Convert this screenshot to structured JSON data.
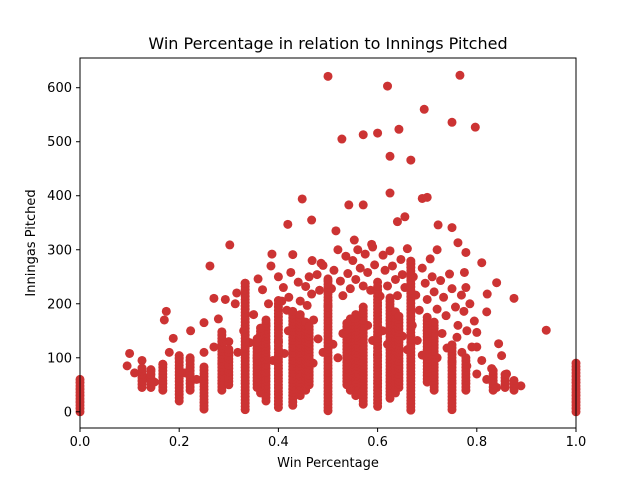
{
  "chart_data": {
    "type": "scatter",
    "title": "Win Percentage in relation to Innings Pitched",
    "xlabel": "Win Percentage",
    "ylabel": "Inningas Pitched",
    "xlim": [
      0.0,
      1.0
    ],
    "ylim": [
      -30,
      655
    ],
    "xticks": [
      0.0,
      0.2,
      0.4,
      0.6,
      0.8,
      1.0
    ],
    "xtick_labels": [
      "0.0",
      "0.2",
      "0.4",
      "0.6",
      "0.8",
      "1.0"
    ],
    "yticks": [
      0,
      100,
      200,
      300,
      400,
      500,
      600
    ],
    "ytick_labels": [
      "0",
      "100",
      "200",
      "300",
      "400",
      "500",
      "600"
    ],
    "grid": false,
    "legend": "none",
    "marker_color": "#cc3333",
    "series": [
      {
        "points": [
          [
            0.5,
            621
          ],
          [
            0.62,
            603
          ],
          [
            0.766,
            623
          ],
          [
            0.694,
            560
          ],
          [
            0.75,
            536
          ],
          [
            0.797,
            527
          ],
          [
            0.643,
            523
          ],
          [
            0.528,
            505
          ],
          [
            0.571,
            513
          ],
          [
            0.6,
            516
          ],
          [
            0.625,
            473
          ],
          [
            0.667,
            466
          ],
          [
            0.625,
            405
          ],
          [
            0.69,
            395
          ],
          [
            0.448,
            394
          ],
          [
            0.542,
            383
          ],
          [
            0.571,
            383
          ],
          [
            0.7,
            397
          ],
          [
            0.655,
            361
          ],
          [
            0.64,
            352
          ],
          [
            0.722,
            346
          ],
          [
            0.75,
            341
          ],
          [
            0.467,
            355
          ],
          [
            0.419,
            347
          ],
          [
            0.762,
            313
          ],
          [
            0.302,
            309
          ],
          [
            0.516,
            335
          ],
          [
            0.553,
            318
          ],
          [
            0.588,
            310
          ],
          [
            0.72,
            300
          ],
          [
            0.778,
            295
          ],
          [
            0.81,
            276
          ],
          [
            0.387,
            292
          ],
          [
            0.429,
            291
          ],
          [
            0.468,
            280
          ],
          [
            0.262,
            270
          ],
          [
            0.486,
            275
          ],
          [
            0.775,
            258
          ],
          [
            0.84,
            239
          ],
          [
            0.821,
            218
          ],
          [
            0.875,
            210
          ],
          [
            0.94,
            151
          ],
          [
            0.8,
            147
          ],
          [
            0.778,
            230
          ],
          [
            0.82,
            185
          ],
          [
            0.8,
            120
          ],
          [
            0.844,
            126
          ],
          [
            0.85,
            104
          ],
          [
            0.889,
            48
          ],
          [
            0.174,
            186
          ],
          [
            0.17,
            170
          ],
          [
            0.188,
            136
          ],
          [
            0.223,
            150
          ],
          [
            0.25,
            165
          ],
          [
            0.27,
            210
          ],
          [
            0.279,
            172
          ],
          [
            0.293,
            208
          ],
          [
            0.313,
            200
          ],
          [
            0.316,
            220
          ],
          [
            0.333,
            238
          ],
          [
            0.35,
            180
          ],
          [
            0.359,
            246
          ],
          [
            0.368,
            226
          ],
          [
            0.375,
            160
          ],
          [
            0.38,
            200
          ],
          [
            0.385,
            270
          ],
          [
            0.4,
            250
          ],
          [
            0.407,
            205
          ],
          [
            0.41,
            230
          ],
          [
            0.417,
            188
          ],
          [
            0.421,
            212
          ],
          [
            0.425,
            258
          ],
          [
            0.429,
            155
          ],
          [
            0.435,
            176
          ],
          [
            0.44,
            240
          ],
          [
            0.444,
            205
          ],
          [
            0.455,
            232
          ],
          [
            0.458,
            197
          ],
          [
            0.462,
            250
          ],
          [
            0.467,
            218
          ],
          [
            0.471,
            170
          ],
          [
            0.478,
            254
          ],
          [
            0.483,
            225
          ],
          [
            0.49,
            271
          ],
          [
            0.5,
            246
          ],
          [
            0.5,
            196
          ],
          [
            0.507,
            228
          ],
          [
            0.512,
            262
          ],
          [
            0.52,
            300
          ],
          [
            0.525,
            242
          ],
          [
            0.53,
            215
          ],
          [
            0.536,
            288
          ],
          [
            0.54,
            256
          ],
          [
            0.545,
            228
          ],
          [
            0.55,
            280
          ],
          [
            0.556,
            245
          ],
          [
            0.56,
            300
          ],
          [
            0.565,
            266
          ],
          [
            0.571,
            233
          ],
          [
            0.575,
            292
          ],
          [
            0.58,
            258
          ],
          [
            0.586,
            225
          ],
          [
            0.59,
            305
          ],
          [
            0.594,
            272
          ],
          [
            0.6,
            240
          ],
          [
            0.605,
            214
          ],
          [
            0.611,
            290
          ],
          [
            0.615,
            262
          ],
          [
            0.62,
            233
          ],
          [
            0.625,
            298
          ],
          [
            0.63,
            270
          ],
          [
            0.636,
            245
          ],
          [
            0.64,
            215
          ],
          [
            0.647,
            282
          ],
          [
            0.65,
            254
          ],
          [
            0.655,
            230
          ],
          [
            0.66,
            302
          ],
          [
            0.667,
            275
          ],
          [
            0.672,
            250
          ],
          [
            0.677,
            216
          ],
          [
            0.684,
            188
          ],
          [
            0.69,
            266
          ],
          [
            0.696,
            238
          ],
          [
            0.7,
            208
          ],
          [
            0.706,
            283
          ],
          [
            0.71,
            250
          ],
          [
            0.714,
            222
          ],
          [
            0.72,
            190
          ],
          [
            0.727,
            243
          ],
          [
            0.733,
            212
          ],
          [
            0.738,
            178
          ],
          [
            0.745,
            255
          ],
          [
            0.75,
            228
          ],
          [
            0.757,
            194
          ],
          [
            0.762,
            160
          ],
          [
            0.769,
            216
          ],
          [
            0.774,
            186
          ],
          [
            0.78,
            150
          ],
          [
            0.786,
            200
          ],
          [
            0.795,
            168
          ],
          [
            0.1,
            108
          ],
          [
            0.095,
            85
          ],
          [
            0.11,
            72
          ],
          [
            0.125,
            95
          ],
          [
            0.133,
            62
          ],
          [
            0.143,
            78
          ],
          [
            0.15,
            55
          ],
          [
            0.167,
            88
          ],
          [
            0.18,
            110
          ],
          [
            0.2,
            100
          ],
          [
            0.212,
            72
          ],
          [
            0.222,
            96
          ],
          [
            0.235,
            60
          ],
          [
            0.25,
            110
          ],
          [
            0.27,
            120
          ],
          [
            0.286,
            90
          ],
          [
            0.3,
            130
          ],
          [
            0.318,
            110
          ],
          [
            0.33,
            150
          ],
          [
            0.342,
            128
          ],
          [
            0.357,
            100
          ],
          [
            0.364,
            140
          ],
          [
            0.375,
            118
          ],
          [
            0.389,
            95
          ],
          [
            0.4,
            130
          ],
          [
            0.412,
            108
          ],
          [
            0.42,
            150
          ],
          [
            0.43,
            122
          ],
          [
            0.44,
            100
          ],
          [
            0.45,
            140
          ],
          [
            0.46,
            115
          ],
          [
            0.47,
            90
          ],
          [
            0.48,
            135
          ],
          [
            0.49,
            110
          ],
          [
            0.51,
            125
          ],
          [
            0.52,
            100
          ],
          [
            0.53,
            145
          ],
          [
            0.54,
            118
          ],
          [
            0.55,
            90
          ],
          [
            0.56,
            138
          ],
          [
            0.57,
            112
          ],
          [
            0.58,
            160
          ],
          [
            0.59,
            132
          ],
          [
            0.6,
            105
          ],
          [
            0.61,
            150
          ],
          [
            0.62,
            125
          ],
          [
            0.63,
            98
          ],
          [
            0.64,
            170
          ],
          [
            0.65,
            140
          ],
          [
            0.66,
            115
          ],
          [
            0.67,
            160
          ],
          [
            0.68,
            132
          ],
          [
            0.69,
            105
          ],
          [
            0.7,
            150
          ],
          [
            0.71,
            125
          ],
          [
            0.72,
            100
          ],
          [
            0.73,
            145
          ],
          [
            0.74,
            118
          ],
          [
            0.75,
            92
          ],
          [
            0.76,
            138
          ],
          [
            0.77,
            110
          ],
          [
            0.78,
            85
          ],
          [
            0.79,
            120
          ],
          [
            0.8,
            70
          ],
          [
            0.81,
            95
          ],
          [
            0.82,
            60
          ],
          [
            0.83,
            80
          ],
          [
            0.84,
            45
          ],
          [
            0.86,
            70
          ]
        ],
        "vertical_clusters": [
          {
            "x": 0.0,
            "from": 0,
            "to": 62
          },
          {
            "x": 1.0,
            "from": 0,
            "to": 92
          },
          {
            "x": 0.333,
            "from": 4,
            "to": 240
          },
          {
            "x": 0.5,
            "from": 2,
            "to": 246
          },
          {
            "x": 0.667,
            "from": 3,
            "to": 280
          },
          {
            "x": 0.25,
            "from": 5,
            "to": 88
          },
          {
            "x": 0.75,
            "from": 4,
            "to": 125
          },
          {
            "x": 0.2,
            "from": 20,
            "to": 108
          },
          {
            "x": 0.4,
            "from": 8,
            "to": 210
          },
          {
            "x": 0.6,
            "from": 10,
            "to": 232
          },
          {
            "x": 0.429,
            "from": 12,
            "to": 190
          },
          {
            "x": 0.571,
            "from": 14,
            "to": 198
          },
          {
            "x": 0.375,
            "from": 20,
            "to": 170
          },
          {
            "x": 0.625,
            "from": 25,
            "to": 215
          },
          {
            "x": 0.286,
            "from": 40,
            "to": 150
          },
          {
            "x": 0.714,
            "from": 40,
            "to": 170
          },
          {
            "x": 0.167,
            "from": 40,
            "to": 90
          },
          {
            "x": 0.833,
            "from": 40,
            "to": 76
          },
          {
            "x": 0.444,
            "from": 30,
            "to": 180
          },
          {
            "x": 0.556,
            "from": 30,
            "to": 180
          },
          {
            "x": 0.455,
            "from": 40,
            "to": 170
          },
          {
            "x": 0.545,
            "from": 40,
            "to": 175
          },
          {
            "x": 0.462,
            "from": 50,
            "to": 160
          },
          {
            "x": 0.538,
            "from": 50,
            "to": 165
          },
          {
            "x": 0.364,
            "from": 35,
            "to": 160
          },
          {
            "x": 0.636,
            "from": 35,
            "to": 190
          },
          {
            "x": 0.357,
            "from": 45,
            "to": 140
          },
          {
            "x": 0.643,
            "from": 45,
            "to": 180
          },
          {
            "x": 0.143,
            "from": 45,
            "to": 80
          },
          {
            "x": 0.857,
            "from": 45,
            "to": 70
          },
          {
            "x": 0.222,
            "from": 40,
            "to": 100
          },
          {
            "x": 0.778,
            "from": 40,
            "to": 100
          },
          {
            "x": 0.3,
            "from": 50,
            "to": 120
          },
          {
            "x": 0.7,
            "from": 55,
            "to": 175
          },
          {
            "x": 0.125,
            "from": 45,
            "to": 85
          },
          {
            "x": 0.875,
            "from": 40,
            "to": 60
          }
        ]
      }
    ]
  }
}
